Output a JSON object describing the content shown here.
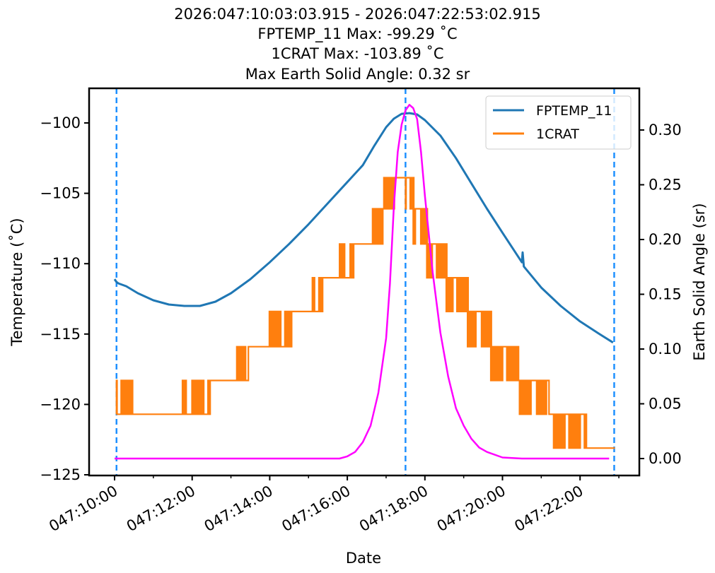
{
  "chart_data": {
    "type": "line",
    "title_lines": [
      "2026:047:10:03:03.915 - 2026:047:22:53:02.915",
      "FPTEMP_11 Max: -99.29 ˚C",
      "1CRAT Max: -103.89 ˚C",
      "Max Earth Solid Angle: 0.32 sr"
    ],
    "xlabel": "Date",
    "ylabel": "Temperature (˚C)",
    "y2label": "Earth Solid Angle (sr)",
    "x_unit": "hours of day 047",
    "xlim": [
      9.95,
      23.25
    ],
    "ylim": [
      -125,
      -97.5
    ],
    "y2lim": [
      -0.015,
      0.337
    ],
    "x_ticks": [
      10,
      12,
      14,
      16,
      18,
      20,
      22
    ],
    "x_tick_labels": [
      "047:10:00",
      "047:12:00",
      "047:14:00",
      "047:16:00",
      "047:18:00",
      "047:20:00",
      "047:22:00"
    ],
    "y_ticks": [
      -100,
      -105,
      -110,
      -115,
      -120,
      -125
    ],
    "y_tick_labels": [
      "−100",
      "−105",
      "−110",
      "−115",
      "−120",
      "−125"
    ],
    "y2_ticks": [
      0.3,
      0.25,
      0.2,
      0.15,
      0.1,
      0.05,
      0.0
    ],
    "y2_tick_labels": [
      "0.30",
      "0.25",
      "0.20",
      "0.15",
      "0.10",
      "0.05",
      "0.00"
    ],
    "legend_position": "top-right",
    "vlines": [
      {
        "x": 10.05,
        "color": "#1e90ff",
        "style": "dashed"
      },
      {
        "x": 17.5,
        "color": "#1e90ff",
        "style": "dashed"
      },
      {
        "x": 22.88,
        "color": "#1e90ff",
        "style": "dashed"
      }
    ],
    "series": [
      {
        "name": "FPTEMP_11",
        "axis": "left",
        "color": "#1f77b4",
        "in_legend": true,
        "x": [
          10.0,
          10.05,
          10.1,
          10.3,
          10.6,
          11.0,
          11.4,
          11.8,
          12.2,
          12.6,
          13.0,
          13.5,
          14.0,
          14.5,
          15.0,
          15.5,
          16.0,
          16.4,
          16.7,
          17.0,
          17.2,
          17.4,
          17.6,
          17.8,
          18.0,
          18.4,
          18.8,
          19.2,
          19.6,
          20.0,
          20.5,
          20.52,
          20.55,
          21.0,
          21.5,
          22.0,
          22.5,
          22.85
        ],
        "y": [
          -111.1,
          -111.3,
          -111.4,
          -111.6,
          -112.1,
          -112.6,
          -112.9,
          -113.0,
          -113.0,
          -112.7,
          -112.1,
          -111.1,
          -109.9,
          -108.6,
          -107.2,
          -105.7,
          -104.2,
          -103.0,
          -101.6,
          -100.3,
          -99.7,
          -99.35,
          -99.3,
          -99.4,
          -99.8,
          -100.9,
          -102.5,
          -104.3,
          -106.1,
          -107.8,
          -109.9,
          -109.2,
          -110.2,
          -111.7,
          -113.0,
          -114.1,
          -115.0,
          -115.6
        ]
      },
      {
        "name": "1CRAT",
        "axis": "left",
        "color": "#ff7f0e",
        "in_legend": true,
        "levels": [
          -120.7,
          -118.3,
          -115.9,
          -113.4,
          -111.0,
          -108.6,
          -106.1,
          -103.89
        ],
        "steps": [
          {
            "x0": 10.05,
            "x1": 10.45,
            "level": -120.7,
            "noise_to": -118.3
          },
          {
            "x0": 10.45,
            "x1": 11.75,
            "level": -120.7,
            "noise_to": null
          },
          {
            "x0": 11.75,
            "x1": 12.45,
            "level": -120.7,
            "noise_to": -118.3
          },
          {
            "x0": 12.45,
            "x1": 13.15,
            "level": -118.3,
            "noise_to": null
          },
          {
            "x0": 13.15,
            "x1": 13.45,
            "level": -118.3,
            "noise_to": -115.9
          },
          {
            "x0": 13.45,
            "x1": 13.95,
            "level": -115.9,
            "noise_to": null
          },
          {
            "x0": 13.95,
            "x1": 14.55,
            "level": -115.9,
            "noise_to": -113.4
          },
          {
            "x0": 14.55,
            "x1": 15.1,
            "level": -113.4,
            "noise_to": null
          },
          {
            "x0": 15.1,
            "x1": 15.35,
            "level": -113.4,
            "noise_to": -111.0
          },
          {
            "x0": 15.35,
            "x1": 15.8,
            "level": -111.0,
            "noise_to": null
          },
          {
            "x0": 15.8,
            "x1": 16.15,
            "level": -111.0,
            "noise_to": -108.6
          },
          {
            "x0": 16.15,
            "x1": 16.65,
            "level": -108.6,
            "noise_to": null
          },
          {
            "x0": 16.65,
            "x1": 16.9,
            "level": -108.6,
            "noise_to": -106.1
          },
          {
            "x0": 16.9,
            "x1": 17.2,
            "level": -106.1,
            "noise_to": -103.89
          },
          {
            "x0": 17.2,
            "x1": 17.5,
            "level": -103.89,
            "noise_to": null
          },
          {
            "x0": 17.5,
            "x1": 17.7,
            "level": -103.89,
            "noise_to": -106.1
          },
          {
            "x0": 17.7,
            "x1": 18.05,
            "level": -106.1,
            "noise_to": -108.6
          },
          {
            "x0": 18.05,
            "x1": 18.55,
            "level": -108.6,
            "noise_to": -111.0
          },
          {
            "x0": 18.55,
            "x1": 19.1,
            "level": -111.0,
            "noise_to": -113.4
          },
          {
            "x0": 19.1,
            "x1": 19.7,
            "level": -113.4,
            "noise_to": -115.9
          },
          {
            "x0": 19.7,
            "x1": 20.4,
            "level": -115.9,
            "noise_to": -118.3
          },
          {
            "x0": 20.4,
            "x1": 21.2,
            "level": -118.3,
            "noise_to": -120.7
          },
          {
            "x0": 21.2,
            "x1": 22.15,
            "level": -120.7,
            "noise_to": -123.1
          },
          {
            "x0": 22.15,
            "x1": 22.9,
            "level": -123.1,
            "noise_to": null
          }
        ]
      },
      {
        "name": "Earth Solid Angle",
        "axis": "right",
        "color": "#ff00ff",
        "in_legend": false,
        "x": [
          10.0,
          15.8,
          16.0,
          16.2,
          16.4,
          16.6,
          16.8,
          17.0,
          17.1,
          17.2,
          17.3,
          17.4,
          17.5,
          17.6,
          17.7,
          17.8,
          17.9,
          18.0,
          18.2,
          18.4,
          18.6,
          18.8,
          19.0,
          19.2,
          19.4,
          19.6,
          20.0,
          20.5,
          22.75
        ],
        "y": [
          0.0,
          0.0,
          0.002,
          0.006,
          0.015,
          0.03,
          0.06,
          0.11,
          0.16,
          0.23,
          0.28,
          0.305,
          0.318,
          0.323,
          0.32,
          0.31,
          0.28,
          0.24,
          0.17,
          0.115,
          0.075,
          0.046,
          0.03,
          0.018,
          0.01,
          0.006,
          0.001,
          0.0,
          0.0
        ]
      }
    ]
  }
}
